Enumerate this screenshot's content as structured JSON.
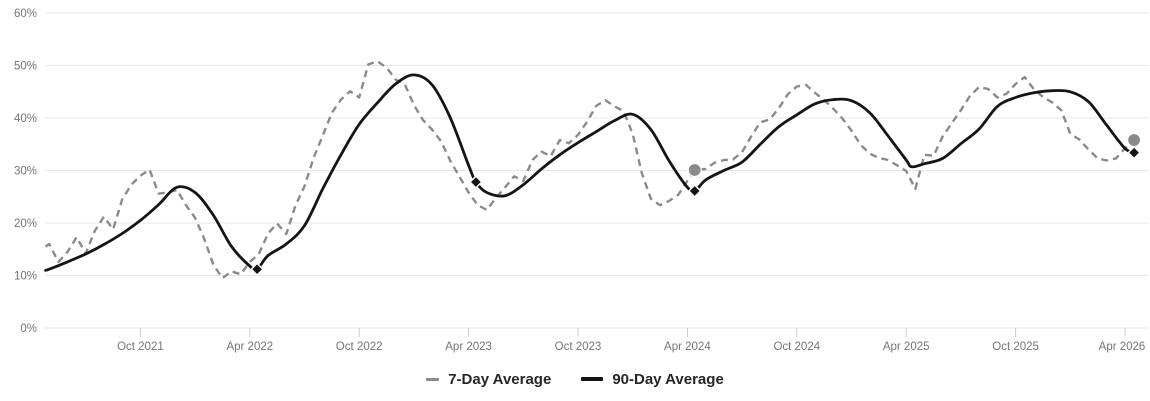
{
  "chart_data": {
    "type": "line",
    "title": "",
    "xlabel": "",
    "ylabel": "",
    "y_axis": {
      "min": 0,
      "max": 60,
      "tick_step": 10,
      "tick_labels": [
        "0%",
        "10%",
        "20%",
        "30%",
        "40%",
        "50%",
        "60%"
      ],
      "format": "percent"
    },
    "x_axis": {
      "unit": "months since Apr 2021",
      "range": [
        0.8,
        60.5
      ],
      "ticks": [
        {
          "m": 6,
          "label": "Oct 2021"
        },
        {
          "m": 12,
          "label": "Apr 2022"
        },
        {
          "m": 18,
          "label": "Oct 2022"
        },
        {
          "m": 24,
          "label": "Apr 2023"
        },
        {
          "m": 30,
          "label": "Oct 2023"
        },
        {
          "m": 36,
          "label": "Apr 2024"
        },
        {
          "m": 42,
          "label": "Oct 2024"
        },
        {
          "m": 48,
          "label": "Apr 2025"
        },
        {
          "m": 54,
          "label": "Oct 2025"
        },
        {
          "m": 60,
          "label": "Apr 2026"
        }
      ]
    },
    "grid": true,
    "legend_position": "bottom-center",
    "colors": {
      "seven_day": "#8a8a8a",
      "ninety_day": "#141414",
      "gridline": "#e7e7e7",
      "tick": "#cccccc",
      "axis_text": "#757575",
      "circle_marker": "#8a8a8a",
      "diamond_marker": "#141414"
    },
    "series": [
      {
        "name": "7-Day Average",
        "style": "dashed",
        "color": "#8a8a8a",
        "points": [
          [
            0.8,
            15.5
          ],
          [
            1,
            16.0
          ],
          [
            1.5,
            12.6
          ],
          [
            2,
            14.5
          ],
          [
            2.5,
            17.3
          ],
          [
            3,
            14.2
          ],
          [
            3.5,
            18.5
          ],
          [
            4,
            21.2
          ],
          [
            4.5,
            18.8
          ],
          [
            5,
            24.5
          ],
          [
            5.5,
            27.3
          ],
          [
            6,
            29.0
          ],
          [
            6.5,
            30.2
          ],
          [
            7,
            25.6
          ],
          [
            7.5,
            25.8
          ],
          [
            8,
            26.3
          ],
          [
            8.5,
            23.4
          ],
          [
            9,
            21.0
          ],
          [
            9.5,
            17.0
          ],
          [
            10,
            12.1
          ],
          [
            10.5,
            9.5
          ],
          [
            11,
            10.8
          ],
          [
            11.5,
            10.2
          ],
          [
            12,
            12.6
          ],
          [
            12.5,
            14.1
          ],
          [
            13,
            18.0
          ],
          [
            13.5,
            19.9
          ],
          [
            14,
            17.9
          ],
          [
            14.5,
            23.3
          ],
          [
            15,
            27.0
          ],
          [
            15.5,
            32.4
          ],
          [
            16,
            36.6
          ],
          [
            16.5,
            41.0
          ],
          [
            17,
            43.5
          ],
          [
            17.5,
            45.1
          ],
          [
            18,
            43.9
          ],
          [
            18.5,
            50.2
          ],
          [
            19,
            50.8
          ],
          [
            19.5,
            49.6
          ],
          [
            20,
            47.3
          ],
          [
            20.5,
            46.4
          ],
          [
            21,
            42.5
          ],
          [
            21.5,
            39.6
          ],
          [
            22,
            37.8
          ],
          [
            22.5,
            35.5
          ],
          [
            23,
            31.8
          ],
          [
            23.5,
            28.8
          ],
          [
            24,
            25.8
          ],
          [
            24.5,
            23.4
          ],
          [
            25,
            22.5
          ],
          [
            25.5,
            24.8
          ],
          [
            26,
            26.8
          ],
          [
            26.5,
            28.9
          ],
          [
            27,
            28.0
          ],
          [
            27.5,
            32.0
          ],
          [
            28,
            33.6
          ],
          [
            28.5,
            32.7
          ],
          [
            29,
            35.8
          ],
          [
            29.5,
            35.2
          ],
          [
            30,
            36.8
          ],
          [
            30.5,
            39.3
          ],
          [
            31,
            42.3
          ],
          [
            31.5,
            43.4
          ],
          [
            32,
            42.2
          ],
          [
            32.5,
            41.3
          ],
          [
            33,
            37.0
          ],
          [
            33.5,
            29.5
          ],
          [
            34,
            24.6
          ],
          [
            34.5,
            23.4
          ],
          [
            35,
            24.2
          ],
          [
            35.5,
            25.4
          ],
          [
            36,
            28.0
          ],
          [
            36.4,
            30.1
          ],
          [
            37,
            30.3
          ],
          [
            37.5,
            31.5
          ],
          [
            38,
            32.0
          ],
          [
            38.5,
            32.1
          ],
          [
            39,
            33.5
          ],
          [
            39.5,
            36.5
          ],
          [
            40,
            39.2
          ],
          [
            40.5,
            39.7
          ],
          [
            41,
            41.8
          ],
          [
            41.5,
            44.5
          ],
          [
            42,
            46.0
          ],
          [
            42.5,
            46.3
          ],
          [
            43,
            44.8
          ],
          [
            43.5,
            43.4
          ],
          [
            44,
            41.8
          ],
          [
            44.5,
            39.9
          ],
          [
            45,
            37.6
          ],
          [
            45.5,
            34.9
          ],
          [
            46,
            33.2
          ],
          [
            46.5,
            32.4
          ],
          [
            47,
            32.0
          ],
          [
            47.5,
            31.0
          ],
          [
            48,
            29.9
          ],
          [
            48.5,
            26.5
          ],
          [
            49,
            33.0
          ],
          [
            49.5,
            32.8
          ],
          [
            50,
            36.5
          ],
          [
            50.5,
            39.0
          ],
          [
            51,
            41.5
          ],
          [
            51.5,
            44.2
          ],
          [
            52,
            45.9
          ],
          [
            52.5,
            45.5
          ],
          [
            53,
            43.9
          ],
          [
            53.5,
            44.6
          ],
          [
            54,
            46.5
          ],
          [
            54.5,
            47.8
          ],
          [
            55,
            45.5
          ],
          [
            55.5,
            44.0
          ],
          [
            56,
            43.0
          ],
          [
            56.5,
            41.5
          ],
          [
            57,
            37.0
          ],
          [
            57.5,
            35.9
          ],
          [
            58,
            34.0
          ],
          [
            58.5,
            32.3
          ],
          [
            59,
            31.9
          ],
          [
            59.5,
            32.3
          ],
          [
            60,
            34.2
          ],
          [
            60.5,
            35.8
          ]
        ]
      },
      {
        "name": "90-Day Average",
        "style": "solid",
        "color": "#141414",
        "points": [
          [
            0.8,
            11.0
          ],
          [
            1,
            11.2
          ],
          [
            2,
            12.6
          ],
          [
            3,
            14.1
          ],
          [
            4,
            15.9
          ],
          [
            5,
            18.0
          ],
          [
            6,
            20.5
          ],
          [
            7,
            23.5
          ],
          [
            8,
            26.8
          ],
          [
            9,
            25.8
          ],
          [
            10,
            21.5
          ],
          [
            11,
            15.5
          ],
          [
            12,
            11.8
          ],
          [
            12.4,
            11.2
          ],
          [
            13,
            13.8
          ],
          [
            14,
            16.0
          ],
          [
            15,
            19.5
          ],
          [
            16,
            26.5
          ],
          [
            17,
            33.0
          ],
          [
            18,
            38.8
          ],
          [
            19,
            42.9
          ],
          [
            20,
            46.5
          ],
          [
            21,
            48.2
          ],
          [
            22,
            46.3
          ],
          [
            23,
            40.0
          ],
          [
            24,
            31.0
          ],
          [
            24.4,
            27.8
          ],
          [
            25,
            25.8
          ],
          [
            26,
            25.2
          ],
          [
            27,
            27.3
          ],
          [
            28,
            30.3
          ],
          [
            29,
            33.0
          ],
          [
            30,
            35.3
          ],
          [
            31,
            37.4
          ],
          [
            32,
            39.5
          ],
          [
            33,
            40.7
          ],
          [
            34,
            37.8
          ],
          [
            35,
            31.8
          ],
          [
            36,
            26.8
          ],
          [
            36.4,
            26.1
          ],
          [
            37,
            28.2
          ],
          [
            38,
            30.0
          ],
          [
            39,
            31.6
          ],
          [
            40,
            35.0
          ],
          [
            41,
            38.3
          ],
          [
            42,
            40.6
          ],
          [
            43,
            42.7
          ],
          [
            44,
            43.5
          ],
          [
            45,
            43.3
          ],
          [
            46,
            41.0
          ],
          [
            47,
            36.6
          ],
          [
            48,
            32.0
          ],
          [
            48.3,
            30.7
          ],
          [
            49,
            31.3
          ],
          [
            50,
            32.3
          ],
          [
            51,
            35.1
          ],
          [
            52,
            37.9
          ],
          [
            53,
            42.2
          ],
          [
            54,
            43.9
          ],
          [
            55,
            44.8
          ],
          [
            56,
            45.2
          ],
          [
            57,
            45.0
          ],
          [
            58,
            43.1
          ],
          [
            59,
            38.6
          ],
          [
            60,
            34.2
          ],
          [
            60.5,
            33.4
          ]
        ]
      }
    ],
    "markers": [
      {
        "series": "90-Day Average",
        "at": "Apr 2022",
        "m": 12.4,
        "value": 11.2,
        "shape": "diamond"
      },
      {
        "series": "90-Day Average",
        "at": "Apr 2023",
        "m": 24.4,
        "value": 27.8,
        "shape": "diamond"
      },
      {
        "series": "7-Day Average",
        "at": "Apr 2024",
        "m": 36.4,
        "value": 30.1,
        "shape": "circle"
      },
      {
        "series": "90-Day Average",
        "at": "Apr 2024",
        "m": 36.4,
        "value": 26.1,
        "shape": "diamond"
      },
      {
        "series": "7-Day Average",
        "at": "Apr 2026",
        "m": 60.5,
        "value": 35.8,
        "shape": "circle"
      },
      {
        "series": "90-Day Average",
        "at": "Apr 2026",
        "m": 60.5,
        "value": 33.4,
        "shape": "diamond"
      }
    ]
  }
}
